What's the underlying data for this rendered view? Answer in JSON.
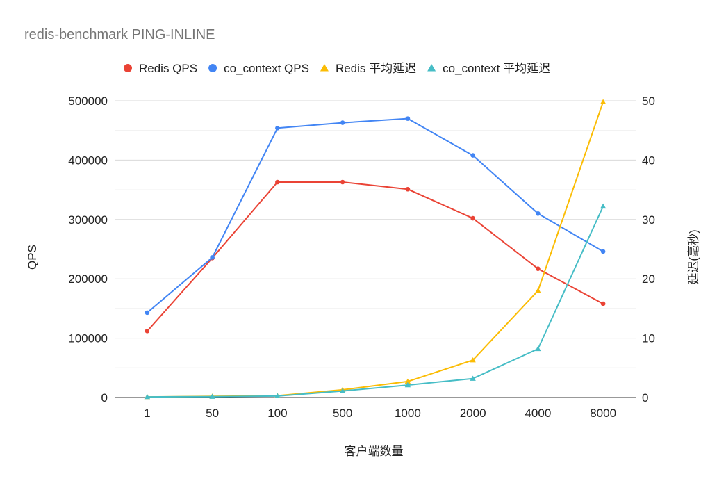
{
  "chart_data": {
    "type": "line",
    "title": "redis-benchmark PING-INLINE",
    "xlabel": "客户端数量",
    "ylabel": "QPS",
    "y2label": "延迟(毫秒)",
    "categories": [
      "1",
      "50",
      "100",
      "500",
      "1000",
      "2000",
      "4000",
      "8000"
    ],
    "ylim": [
      0,
      500000
    ],
    "y2lim": [
      0,
      50
    ],
    "y_ticks": [
      "0",
      "100000",
      "200000",
      "300000",
      "400000",
      "500000"
    ],
    "y2_ticks": [
      "0",
      "10",
      "20",
      "30",
      "40",
      "50"
    ],
    "legend_position": "top-left",
    "grid": true,
    "series": [
      {
        "name": "Redis QPS",
        "axis": "left",
        "marker": "circle",
        "color": "#ea4335",
        "values": [
          112000,
          235000,
          363000,
          363000,
          351000,
          302000,
          217000,
          158000
        ]
      },
      {
        "name": "co_context QPS",
        "axis": "left",
        "marker": "circle",
        "color": "#4285f4",
        "values": [
          143000,
          236000,
          454000,
          463000,
          470000,
          408000,
          310000,
          246000
        ]
      },
      {
        "name": "Redis 平均延迟",
        "axis": "right",
        "marker": "triangle",
        "color": "#fbbc04",
        "values": [
          0.1,
          0.2,
          0.3,
          1.3,
          2.7,
          6.3,
          18.0,
          49.8
        ]
      },
      {
        "name": "co_context 平均延迟",
        "axis": "right",
        "marker": "triangle",
        "color": "#46bdc6",
        "values": [
          0.1,
          0.15,
          0.25,
          1.1,
          2.1,
          3.2,
          8.2,
          32.2
        ]
      }
    ]
  }
}
